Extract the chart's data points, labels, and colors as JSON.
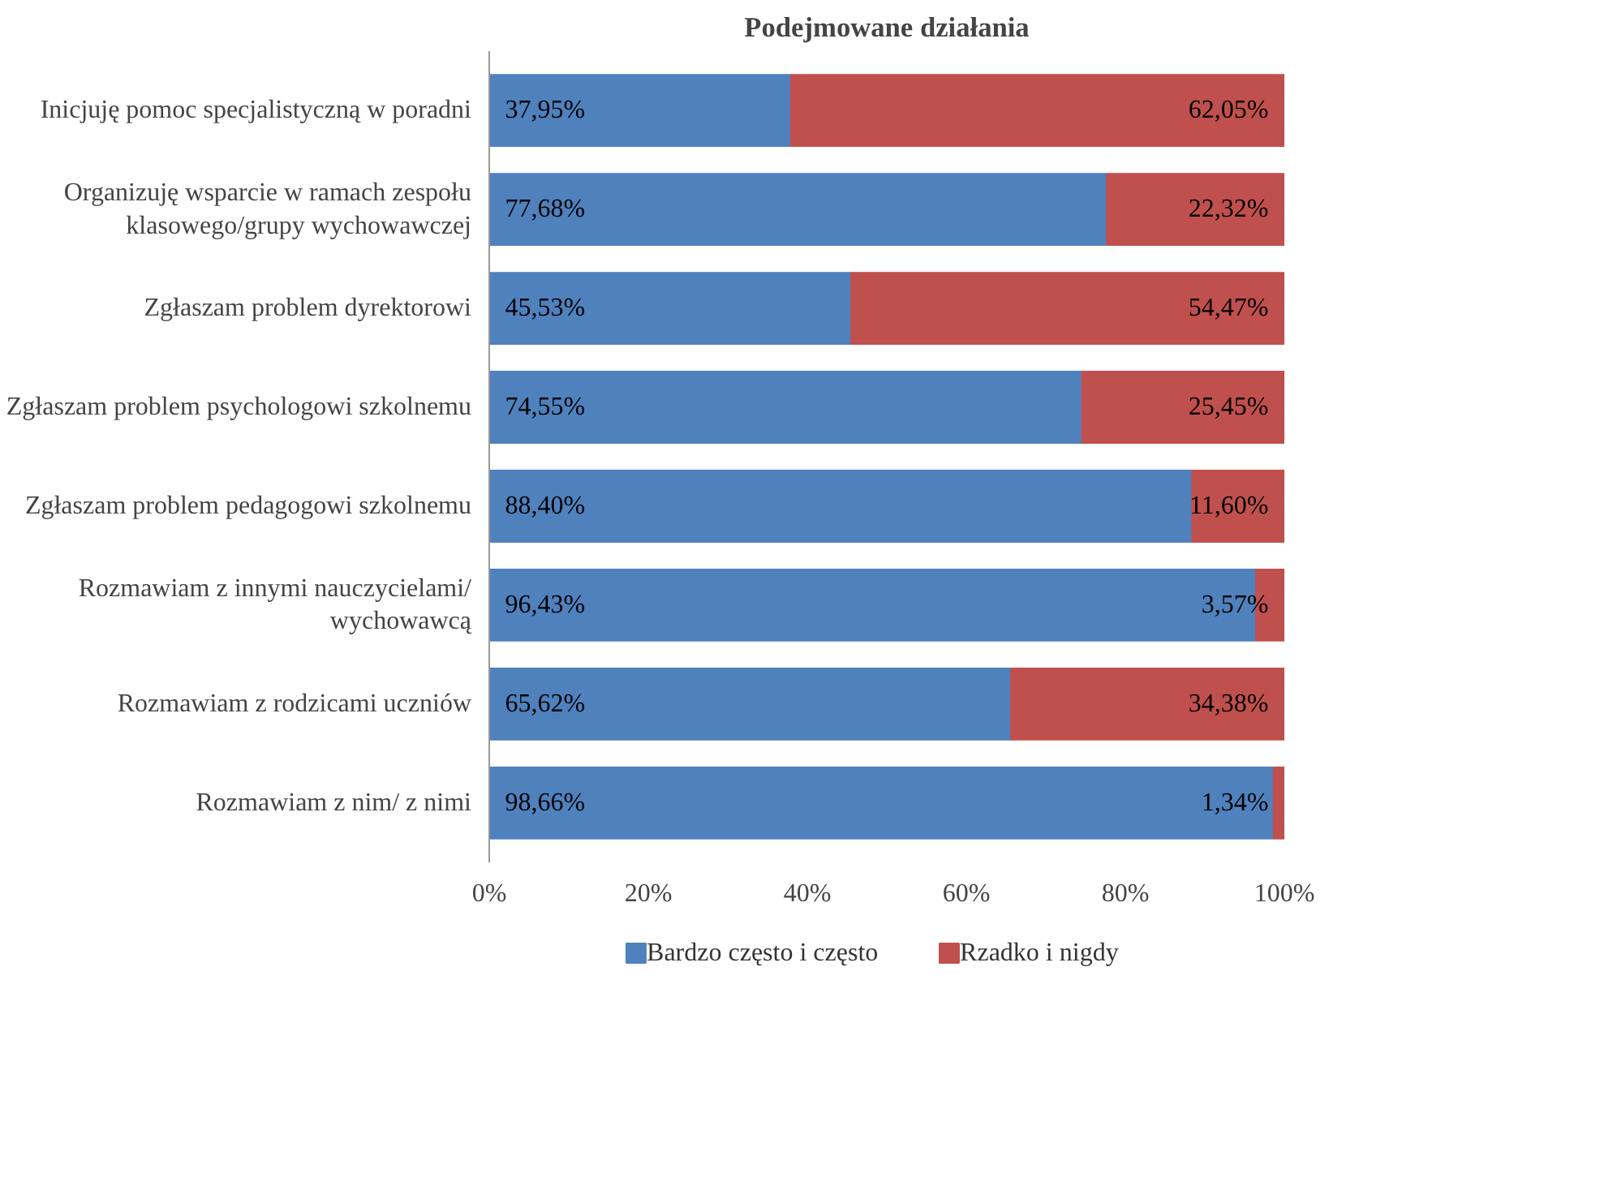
{
  "chart_data": {
    "type": "bar",
    "orientation": "horizontal",
    "stacked": true,
    "title": "Podejmowane działania",
    "categories": [
      "Inicjuję pomoc specjalistyczną w poradni",
      "Organizuję wsparcie w ramach zespołu\nklasowego/grupy wychowawczej",
      "Zgłaszam problem dyrektorowi",
      "Zgłaszam problem psychologowi szkolnemu",
      "Zgłaszam problem pedagogowi szkolnemu",
      "Rozmawiam z innymi nauczycielami/\nwychowawcą",
      "Rozmawiam z rodzicami uczniów",
      "Rozmawiam z nim/ z nimi"
    ],
    "series": [
      {
        "name": "Bardzo często i często",
        "color": "#4f81bd",
        "values": [
          37.95,
          77.68,
          45.53,
          74.55,
          88.4,
          96.43,
          65.62,
          98.66
        ],
        "value_labels": [
          "37,95%",
          "77,68%",
          "45,53%",
          "74,55%",
          "88,40%",
          "96,43%",
          "65,62%",
          "98,66%"
        ]
      },
      {
        "name": "Rzadko i nigdy",
        "color": "#c0504d",
        "values": [
          62.05,
          22.32,
          54.47,
          25.45,
          11.6,
          3.57,
          34.38,
          1.34
        ],
        "value_labels": [
          "62,05%",
          "22,32%",
          "54,47%",
          "25,45%",
          "11,60%",
          "3,57%",
          "34,38%",
          "1,34%"
        ]
      }
    ],
    "xlim": [
      0,
      100
    ],
    "xticks": [
      {
        "value": 0,
        "label": "0%"
      },
      {
        "value": 20,
        "label": "20%"
      },
      {
        "value": 40,
        "label": "40%"
      },
      {
        "value": 60,
        "label": "60%"
      },
      {
        "value": 80,
        "label": "80%"
      },
      {
        "value": 100,
        "label": "100%"
      }
    ],
    "grid": false,
    "legend": "bottom"
  }
}
